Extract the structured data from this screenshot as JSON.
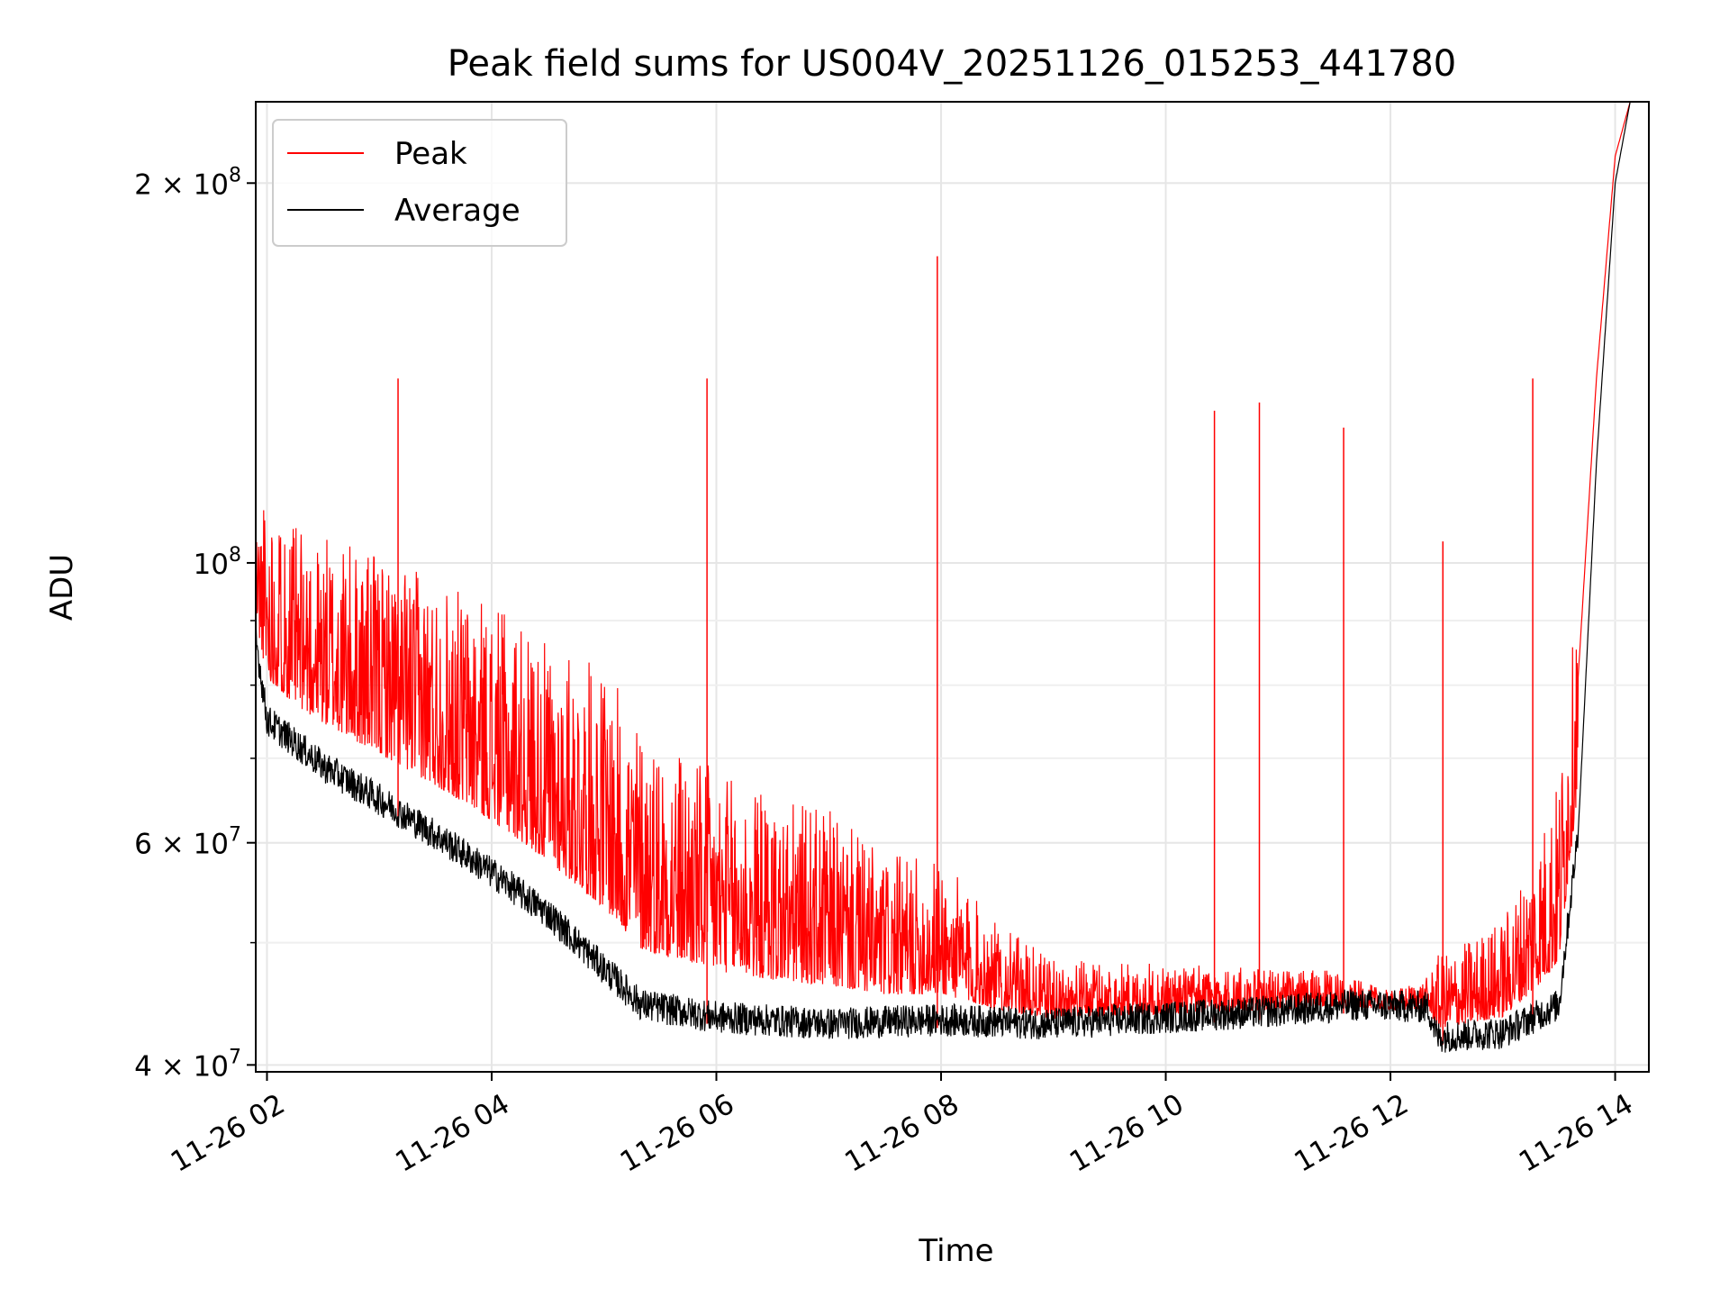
{
  "chart_data": {
    "type": "line",
    "title": "Peak field sums for US004V_20251126_015253_441780",
    "xlabel": "Time",
    "ylabel": "ADU",
    "yscale": "log",
    "ylim": [
      39500000,
      232000000
    ],
    "xlim": [
      "11-26 01:54",
      "11-26 14:18"
    ],
    "grid": true,
    "legend_position": "upper-left",
    "x_ticks": [
      "11-26 02",
      "11-26 04",
      "11-26 06",
      "11-26 08",
      "11-26 10",
      "11-26 12",
      "11-26 14"
    ],
    "y_ticks": [
      {
        "value": 40000000,
        "mantissa": "4",
        "exponent": "7"
      },
      {
        "value": 60000000,
        "mantissa": "6",
        "exponent": "7"
      },
      {
        "value": 100000000,
        "mantissa": "",
        "exponent": "8"
      },
      {
        "value": 200000000,
        "mantissa": "2",
        "exponent": "8"
      }
    ],
    "y_minor_ticks": [
      50000000,
      70000000,
      80000000,
      90000000
    ],
    "series": [
      {
        "name": "Peak",
        "color": "#ff0000",
        "x": [
          "11-26 01:54",
          "11-26 02:15",
          "11-26 02:45",
          "11-26 03:15",
          "11-26 03:45",
          "11-26 04:15",
          "11-26 04:30",
          "11-26 05:00",
          "11-26 05:20",
          "11-26 06:00",
          "11-26 06:30",
          "11-26 07:00",
          "11-26 07:30",
          "11-26 08:00",
          "11-26 08:30",
          "11-26 09:00",
          "11-26 10:00",
          "11-26 11:00",
          "11-26 11:30",
          "11-26 12:00",
          "11-26 12:30",
          "11-26 13:00",
          "11-26 13:15",
          "11-26 13:30",
          "11-26 13:40",
          "11-26 13:50",
          "11-26 14:00",
          "11-26 14:08"
        ],
        "y": [
          100000000,
          92000000,
          88000000,
          84000000,
          80000000,
          75000000,
          72000000,
          68000000,
          62000000,
          58000000,
          56000000,
          55000000,
          52000000,
          52000000,
          48000000,
          46000000,
          46000000,
          46000000,
          46000000,
          45000000,
          46000000,
          48000000,
          52000000,
          58000000,
          80000000,
          140000000,
          210000000,
          232000000
        ],
        "spikes": [
          {
            "x": "11-26 03:10",
            "y": 140000000
          },
          {
            "x": "11-26 05:55",
            "y": 140000000
          },
          {
            "x": "11-26 07:58",
            "y": 175000000
          },
          {
            "x": "11-26 10:26",
            "y": 132000000
          },
          {
            "x": "11-26 10:50",
            "y": 134000000
          },
          {
            "x": "11-26 11:35",
            "y": 128000000
          },
          {
            "x": "11-26 12:28",
            "y": 104000000
          },
          {
            "x": "11-26 13:16",
            "y": 140000000
          },
          {
            "x": "11-26 13:55",
            "y": 155000000
          }
        ]
      },
      {
        "name": "Average",
        "color": "#000000",
        "x": [
          "11-26 01:54",
          "11-26 02:00",
          "11-26 02:30",
          "11-26 03:00",
          "11-26 03:30",
          "11-26 04:00",
          "11-26 04:30",
          "11-26 05:00",
          "11-26 05:20",
          "11-26 06:00",
          "11-26 07:00",
          "11-26 08:00",
          "11-26 09:00",
          "11-26 10:00",
          "11-26 11:00",
          "11-26 11:40",
          "11-26 12:20",
          "11-26 12:25",
          "11-26 13:00",
          "11-26 13:30",
          "11-26 13:40",
          "11-26 13:50",
          "11-26 14:00",
          "11-26 14:08"
        ],
        "y": [
          86000000,
          74000000,
          68000000,
          64000000,
          60000000,
          56000000,
          52000000,
          47000000,
          44000000,
          43000000,
          42500000,
          42800000,
          42500000,
          43000000,
          43500000,
          44000000,
          43800000,
          41500000,
          41800000,
          44000000,
          60000000,
          120000000,
          200000000,
          232000000
        ]
      }
    ]
  }
}
